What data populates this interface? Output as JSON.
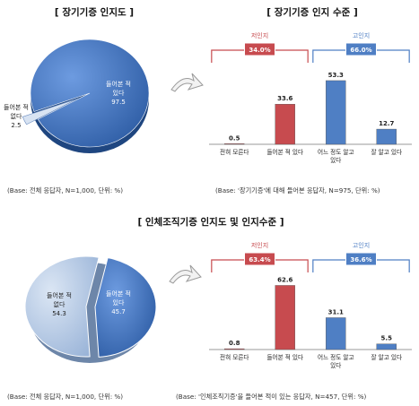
{
  "top": {
    "organ_title": "[ 장기기증 인지도 ]",
    "level_title": "[ 장기기증 인지 수준 ]",
    "organ_base": "(Base: 전체 응답자, N=1,000, 단위: %)",
    "level_base": "(Base: '장기기증'에 대해 들어본 응답자, N=975, 단위: %)"
  },
  "bottom": {
    "title": "[ 인체조직기증 인지도 및 인지수준 ]",
    "organ_base": "(Base: 전체 응답자, N=1,000, 단위: %)",
    "level_base": "(Base: '인체조직기증'을 들어본 적이 있는 응답자, N=457, 단위: %)"
  },
  "chart_data": [
    {
      "type": "pie",
      "title": "[ 장기기증 인지도 ]",
      "slices": [
        {
          "label_lines": [
            "들어본 적",
            "있다"
          ],
          "value_text": "97.5",
          "value": 97.5
        },
        {
          "label_lines": [
            "들어본 적",
            "없다"
          ],
          "value_text": "2.5",
          "value": 2.5
        }
      ],
      "colors": [
        "#3d6fb6",
        "#b9cde6"
      ]
    },
    {
      "type": "bar",
      "title": "[ 장기기증 인지 수준 ]",
      "categories": [
        [
          "전혀 모른다"
        ],
        [
          "들어본 적 있다"
        ],
        [
          "어느 정도 알고",
          "있다"
        ],
        [
          "잘 알고 있다"
        ]
      ],
      "values": [
        0.5,
        33.6,
        53.3,
        12.7
      ],
      "value_labels": [
        "0.5",
        "33.6",
        "53.3",
        "12.7"
      ],
      "bar_colors": [
        "#c74b4f",
        "#c74b4f",
        "#4f7fc4",
        "#4f7fc4"
      ],
      "groups": [
        {
          "name": "저인지",
          "value": "34.0%",
          "color": "#c74b4f",
          "from": 0,
          "to": 1
        },
        {
          "name": "고인지",
          "value": "66.0%",
          "color": "#4f7fc4",
          "from": 2,
          "to": 3
        }
      ],
      "ylim": [
        0,
        60
      ]
    },
    {
      "type": "pie",
      "title": "[ 인체조직기증 인지도 및 인지수준 ]",
      "slices": [
        {
          "label_lines": [
            "들어본 적",
            "있다"
          ],
          "value_text": "45.7",
          "value": 45.7
        },
        {
          "label_lines": [
            "들어본 적",
            "없다"
          ],
          "value_text": "54.3",
          "value": 54.3
        }
      ],
      "colors": [
        "#3d6fb6",
        "#b9cde6"
      ]
    },
    {
      "type": "bar",
      "title": "[ 인체조직기증 인지도 및 인지수준 ]",
      "categories": [
        [
          "전혀 모른다"
        ],
        [
          "들어본 적 있다"
        ],
        [
          "어느 정도 알고",
          "있다"
        ],
        [
          "잘 알고 있다"
        ]
      ],
      "values": [
        0.8,
        62.6,
        31.1,
        5.5
      ],
      "value_labels": [
        "0.8",
        "62.6",
        "31.1",
        "5.5"
      ],
      "bar_colors": [
        "#c74b4f",
        "#c74b4f",
        "#4f7fc4",
        "#4f7fc4"
      ],
      "groups": [
        {
          "name": "저인지",
          "value": "63.4%",
          "color": "#c74b4f",
          "from": 0,
          "to": 1
        },
        {
          "name": "고인지",
          "value": "36.6%",
          "color": "#4f7fc4",
          "from": 2,
          "to": 3
        }
      ],
      "ylim": [
        0,
        70
      ]
    }
  ]
}
